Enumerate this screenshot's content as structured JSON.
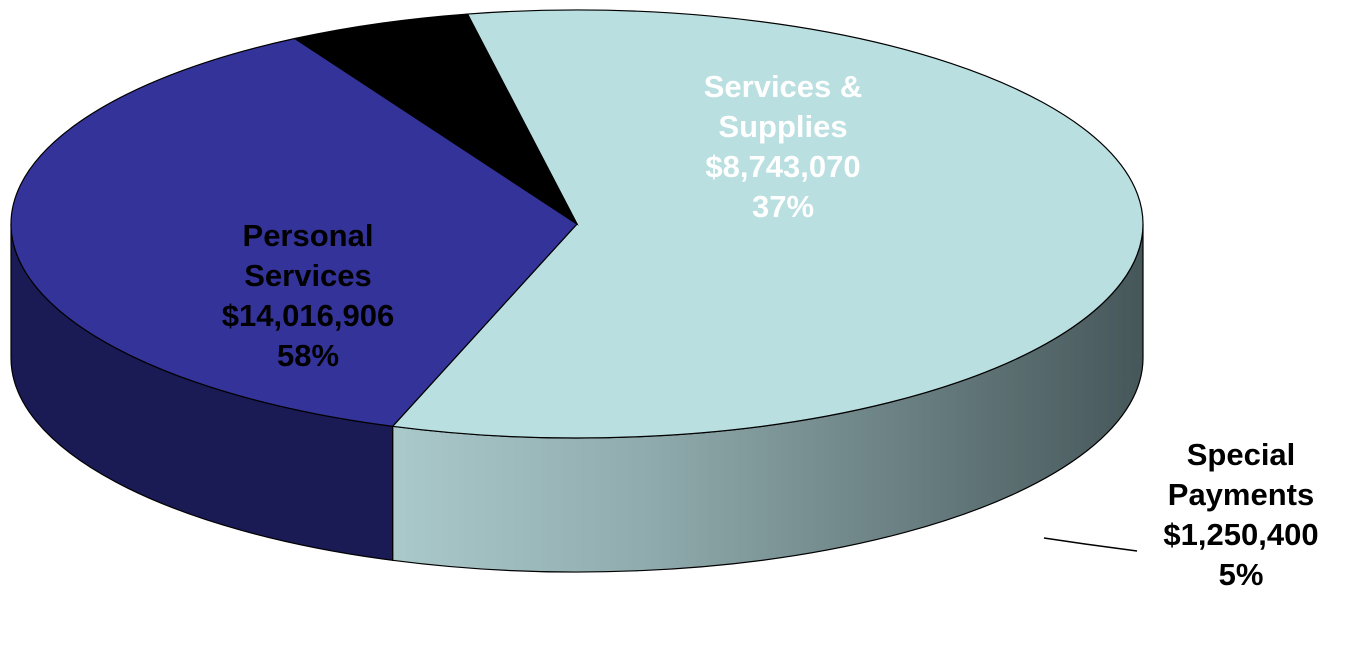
{
  "chart_data": {
    "type": "pie",
    "style": "3d-pie",
    "slices": [
      {
        "label_lines": [
          "Personal",
          "Services"
        ],
        "value_label": "$14,016,906",
        "percent_label": "58%",
        "value": 14016906,
        "percent": 58,
        "color": "#b9dfe0",
        "side_dark": "#46575a"
      },
      {
        "label_lines": [
          "Services &",
          "Supplies"
        ],
        "value_label": "$8,743,070",
        "percent_label": "37%",
        "value": 8743070,
        "percent": 37,
        "color": "#333399",
        "side_dark": "#1a1a55"
      },
      {
        "label_lines": [
          "Special",
          "Payments"
        ],
        "value_label": "$1,250,400",
        "percent_label": "5%",
        "value": 1250400,
        "percent": 5,
        "color": "#000000",
        "side_dark": "#000000"
      }
    ],
    "legend": "none",
    "label_placement": "on-slice, leader line for Special Payments"
  }
}
